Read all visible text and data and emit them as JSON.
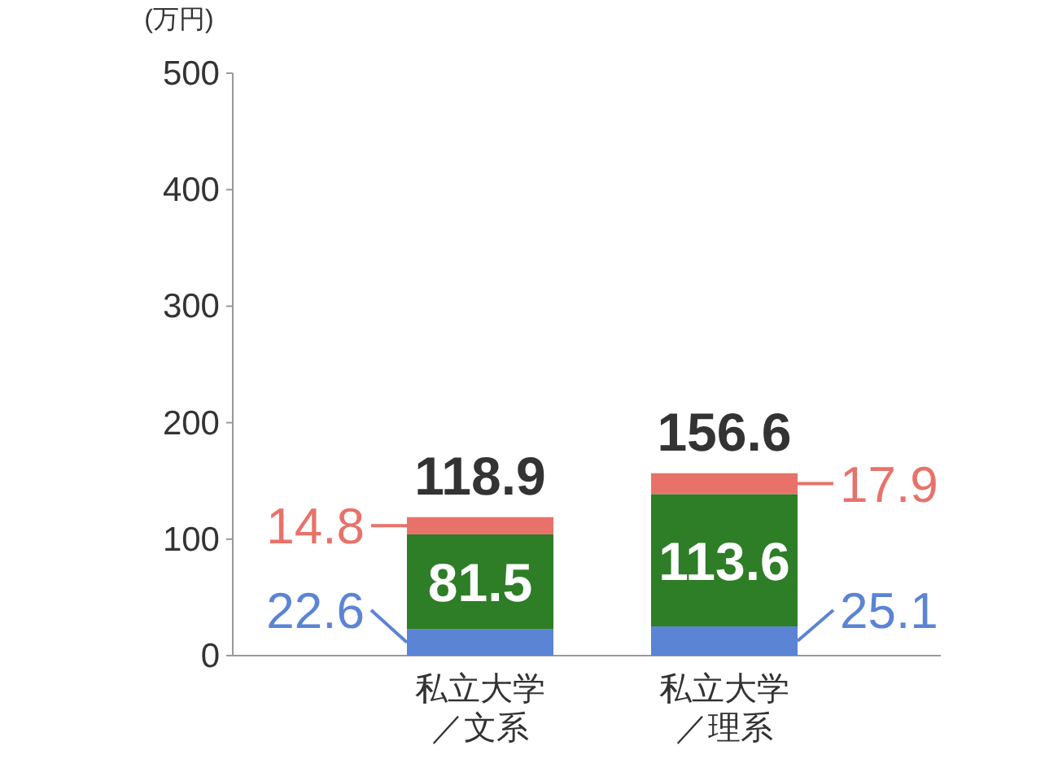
{
  "chart_data": {
    "type": "bar",
    "stacked": true,
    "ylabel": "(万円)",
    "categories": [
      "私立大学／文系",
      "私立大学／理系"
    ],
    "series": [
      {
        "color": "#5b84d4",
        "values": [
          22.6,
          25.1
        ]
      },
      {
        "color": "#2e7d27",
        "values": [
          81.5,
          113.6
        ]
      },
      {
        "color": "#e8726a",
        "values": [
          14.8,
          17.9
        ]
      }
    ],
    "totals": [
      "118.9",
      "156.6"
    ],
    "data_labels": true,
    "ylim": [
      0,
      500
    ],
    "yticks": [
      0,
      100,
      200,
      300,
      400,
      500
    ],
    "grid": false
  }
}
